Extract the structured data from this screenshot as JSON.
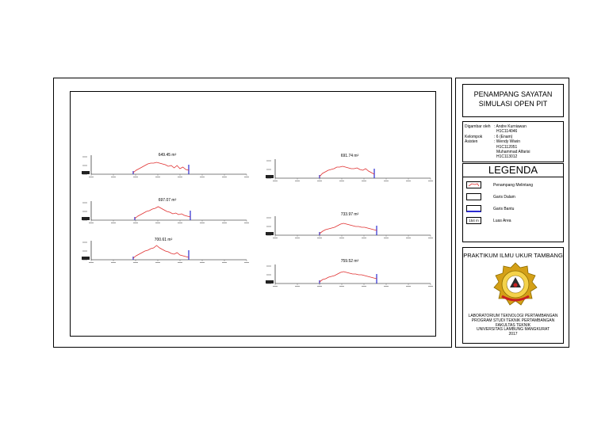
{
  "title_block": {
    "line1": "PENAMPANG SAYATAN",
    "line2": "SIMULASI OPEN PIT"
  },
  "info": {
    "rows": [
      {
        "label": "Digambar oleh",
        "value": ": Andre Kurniawan"
      },
      {
        "label": "",
        "value": "H1C114046"
      },
      {
        "label": "Kelompok",
        "value": ": 6 (Enam)"
      },
      {
        "label": "Asisten",
        "value": ": Wendy Wiwin"
      },
      {
        "label": "",
        "value": "H1C112051"
      },
      {
        "label": "",
        "value": "Muhammad Alfarisi"
      },
      {
        "label": "",
        "value": "H1C113012"
      }
    ]
  },
  "legend": {
    "title": "LEGENDA",
    "items": [
      {
        "symbol": "red-profile",
        "label": "Penampang Melintang"
      },
      {
        "symbol": "box",
        "label": "Garis Dalam"
      },
      {
        "symbol": "blue-line",
        "label": "Garis Bantu"
      },
      {
        "symbol": "area",
        "symbol_text": "154 m",
        "label": "Luas Area"
      }
    ]
  },
  "institution": {
    "title": "PRAKTIKUM ILMU UKUR TAMBANG",
    "logo_color": "#d4a017",
    "lines": [
      "LABORATORIUM TEKNOLOGI PERTAMBANGAN",
      "PROGRAM STUDI TEKNIK PERTAMBANGAN",
      "FAKULTAS TEKNIK",
      "UNIVERSITAS LAMBUNG MANGKURAT",
      "2017"
    ]
  },
  "sections": [
    {
      "area_label": "649.45 m²"
    },
    {
      "area_label": "697.07 m²"
    },
    {
      "area_label": "700.61 m²"
    },
    {
      "area_label": "691.74 m²"
    },
    {
      "area_label": "733.97 m²"
    },
    {
      "area_label": "759.52 m²"
    }
  ],
  "colors": {
    "profile": "#e03030",
    "helper": "#2a2ad0",
    "axis": "#000000"
  }
}
